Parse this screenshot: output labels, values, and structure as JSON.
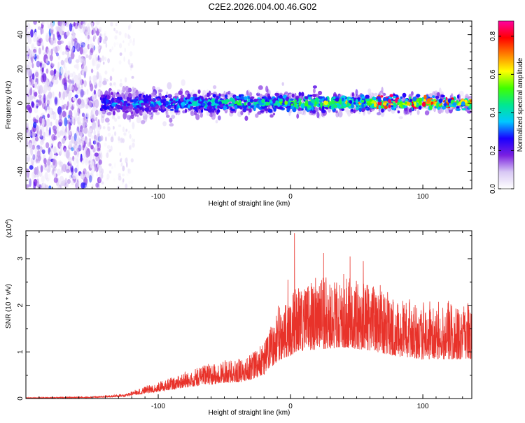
{
  "title": "C2E2.2026.004.00.46.G02",
  "colors": {
    "snr_line": "#e8322a",
    "axis": "#000000"
  },
  "chart_data": [
    {
      "type": "heatmap",
      "xlabel": "Height of straight line (km)",
      "ylabel": "Frequency (Hz)",
      "xlim": [
        -200,
        137
      ],
      "ylim": [
        -50,
        48
      ],
      "xticks": [
        -100,
        0,
        100
      ],
      "yticks": [
        -40,
        -20,
        0,
        20,
        40
      ],
      "grid": false,
      "colorbar": {
        "label": "Normalized spectral amplitude",
        "range": [
          0.0,
          0.88
        ],
        "ticks": [
          "0.0",
          "0.2",
          "0.4",
          "0.6",
          "0.8"
        ],
        "colormap": [
          "#ffffff",
          "#d8c8f4",
          "#7a20e0",
          "#1a00ff",
          "#00c8ff",
          "#00e890",
          "#40ff00",
          "#ffff00",
          "#ff8000",
          "#ff0000",
          "#ff00a0"
        ]
      },
      "features": [
        {
          "region": "noise",
          "x": [
            -200,
            -143
          ],
          "freq_band": [
            -50,
            48
          ],
          "amplitude": 0.08
        },
        {
          "region": "sparse",
          "x": [
            -143,
            -118
          ],
          "freq_band": [
            -50,
            48
          ],
          "amplitude": 0.03
        },
        {
          "region": "signal",
          "x": [
            -143,
            137
          ],
          "freq_center": 0,
          "freq_halfwidth": [
            6,
            12
          ],
          "peak_amplitude": 0.85
        }
      ]
    },
    {
      "type": "line",
      "xlabel": "Height of straight line (km)",
      "ylabel": "SNR (10 * v/v)",
      "y_multiplier": "(x10",
      "y_exponent": "4",
      "xlim": [
        -200,
        137
      ],
      "ylim": [
        0,
        3.6
      ],
      "xticks": [
        -100,
        0,
        100
      ],
      "yticks": [
        0,
        1,
        2,
        3
      ],
      "grid": false,
      "envelope": [
        {
          "x": -200,
          "y": 0.02
        },
        {
          "x": -150,
          "y": 0.04
        },
        {
          "x": -125,
          "y": 0.1
        },
        {
          "x": -110,
          "y": 0.25
        },
        {
          "x": -90,
          "y": 0.45
        },
        {
          "x": -70,
          "y": 0.65
        },
        {
          "x": -50,
          "y": 0.8
        },
        {
          "x": -35,
          "y": 0.85
        },
        {
          "x": -20,
          "y": 1.2
        },
        {
          "x": -10,
          "y": 1.9
        },
        {
          "x": 0,
          "y": 2.2
        },
        {
          "x": 5,
          "y": 2.4
        },
        {
          "x": 20,
          "y": 2.5
        },
        {
          "x": 40,
          "y": 2.6
        },
        {
          "x": 60,
          "y": 2.45
        },
        {
          "x": 80,
          "y": 2.15
        },
        {
          "x": 100,
          "y": 2.0
        },
        {
          "x": 120,
          "y": 2.0
        },
        {
          "x": 137,
          "y": 2.0
        }
      ],
      "peaks": [
        {
          "x": 3,
          "y": 3.55
        },
        {
          "x": 25,
          "y": 3.12
        },
        {
          "x": 45,
          "y": 3.05
        },
        {
          "x": 55,
          "y": 2.95
        },
        {
          "x": -2,
          "y": 2.55
        }
      ]
    }
  ]
}
